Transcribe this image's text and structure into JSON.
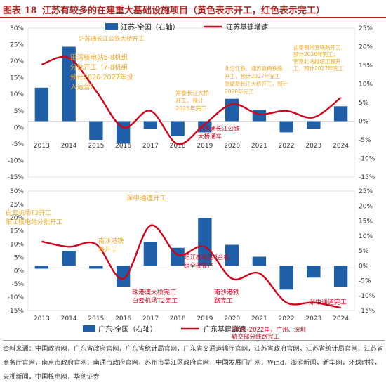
{
  "header": {
    "figure_no": "图表 18",
    "title": "江苏有较多的在建重大基础设施项目（黄色表示开工，红色表示完工）"
  },
  "charts": [
    {
      "chart_data": {
        "type": "bar+line",
        "region": "jiangsu",
        "categories": [
          "2013",
          "2014",
          "2015",
          "2016",
          "2017",
          "2018",
          "2019",
          "2020",
          "2021",
          "2022",
          "2023",
          "2024"
        ],
        "bar_series": {
          "name": "江苏-全国（右轴）",
          "axis": "right",
          "color": "#1f5fa8",
          "values": [
            9,
            20,
            -5,
            -6,
            -2,
            -4,
            -3,
            6,
            3,
            -3,
            -2,
            4
          ]
        },
        "line_series": {
          "name": "江苏基建增速",
          "axis": "left",
          "color": "#d0021b",
          "values": [
            19,
            21,
            11,
            0,
            5,
            -5,
            1,
            7,
            4,
            5,
            3,
            9
          ]
        },
        "left_axis": {
          "min": -15,
          "max": 30,
          "step": 5,
          "ticks": [
            "-15%",
            "-10%",
            "-5%",
            "0%",
            "5%",
            "10%",
            "15%",
            "20%",
            "25%",
            "30%"
          ]
        },
        "right_axis": {
          "min": -15,
          "max": 25,
          "step": 5,
          "ticks": [
            "-15%",
            "-10%",
            "-5%",
            "0%",
            "5%",
            "10%",
            "15%",
            "20%",
            "25%"
          ]
        },
        "legend": [
          "江苏-全国（右轴）",
          "江苏基建增速"
        ],
        "legend_position": "top-right",
        "annotations": [
          {
            "text_lines": [
              "沪苏通长江公铁大桥开工"
            ],
            "color": "#f5a623"
          },
          {
            "text_lines": [
              "田湾核电站5-8机组",
              "分批开工（7-8机组",
              "预计2026-2027年投",
              "入运营）"
            ],
            "color": "#f5a623"
          },
          {
            "text_lines": [
              "常泰长江大桥",
              "开工，预计",
              "2025年完工"
            ],
            "color": "#f5a623"
          },
          {
            "text_lines": [
              "沪苏通长江公铁",
              "大桥通车"
            ],
            "color": "#d0021b"
          },
          {
            "text_lines": [
              "北沿江铁、通苏嘉甬铁路",
              "开工，预计2027年完工",
              "张靖皋长江大桥开工，预计",
              "2028年完工"
            ],
            "color": "#f5a623"
          },
          {
            "text_lines": [
              "盐泰锡常宜铁路开工，",
              "预计2030年完工；",
              "南京北站枢纽工程开",
              "工，预计2027年完工"
            ],
            "color": "#f5a623"
          }
        ]
      }
    },
    {
      "chart_data": {
        "type": "bar+line",
        "region": "guangdong",
        "categories": [
          "2013",
          "2014",
          "2015",
          "2016",
          "2017",
          "2018",
          "2019",
          "2020",
          "2021",
          "2022",
          "2023",
          "2024"
        ],
        "bar_series": {
          "name": "广东-全国（右轴）",
          "axis": "right",
          "color": "#1f5fa8",
          "values": [
            -1,
            5,
            -1,
            -7,
            8,
            6,
            16,
            7,
            3,
            -8,
            -4,
            -7
          ]
        },
        "line_series": {
          "name": "广东基建增速",
          "axis": "left",
          "color": "#d0021b",
          "values": [
            11,
            9,
            10,
            -3,
            17,
            6,
            9,
            -3,
            -1,
            -12,
            -12,
            -14
          ]
        },
        "left_axis": {
          "min": -15,
          "max": 30,
          "step": 5,
          "ticks": [
            "-15%",
            "-10%",
            "-5%",
            "0%",
            "5%",
            "10%",
            "15%",
            "20%",
            "25%",
            "30%"
          ]
        },
        "right_axis": {
          "min": -15,
          "max": 25,
          "step": 5,
          "ticks": [
            "-15%",
            "-10%",
            "-5%",
            "0%",
            "5%",
            "10%",
            "15%",
            "20%",
            "25%"
          ]
        },
        "legend": [
          "广东-全国（右轴）",
          "广东基建增速"
        ],
        "legend_position": "bottom",
        "annotations": [
          {
            "text_lines": [
              "白云机场T2开工",
              "阳江核电站分批开工"
            ],
            "color": "#f5a623"
          },
          {
            "text_lines": [
              "深中通道开工"
            ],
            "color": "#f5a623"
          },
          {
            "text_lines": [
              "南沙港铁",
              "路开工"
            ],
            "color": "#f5a623"
          },
          {
            "text_lines": [
              "阳江核电站6台机",
              "组全部投产"
            ],
            "color": "#d0021b"
          },
          {
            "text_lines": [
              "珠港澳大桥完工",
              "白云机场T2完工"
            ],
            "color": "#d0021b"
          },
          {
            "text_lines": [
              "南沙港铁",
              "路完工"
            ],
            "color": "#d0021b"
          },
          {
            "text_lines": [
              "深中通道完工"
            ],
            "color": "#d0021b"
          },
          {
            "text_lines": [
              "2021-2022年，广州、深圳",
              "轨交部分线路完工"
            ],
            "color": "#d0021b"
          }
        ]
      }
    }
  ],
  "source": {
    "text": "资料来源：中国政府网，广东省政府官网，广东省统计局官网，广东省交通运输厅官网，江苏省政府官网，江苏省统计局官网，江苏省商务厅官网，南京市政府官网，南通市政府官网，苏州市吴江区政府官网，中国发展门户网，Wind，澎湃新闻，新华网，环球时报，央视新闻，中国核电网，华创证券"
  }
}
